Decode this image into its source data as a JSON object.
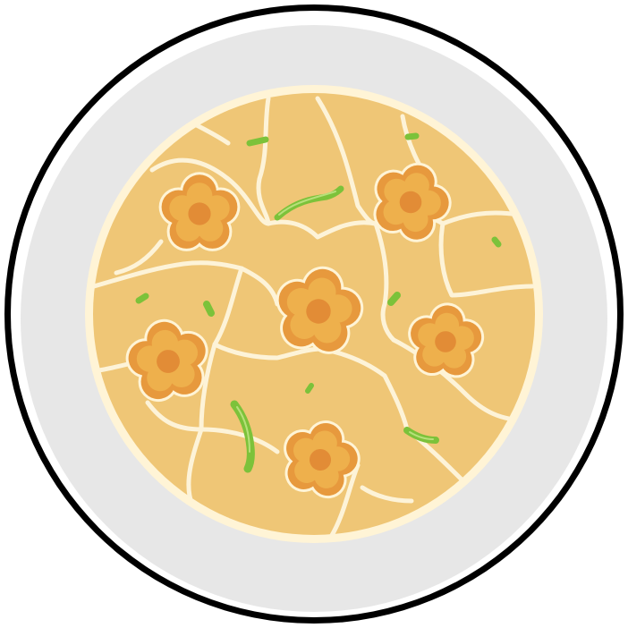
{
  "colors": {
    "background": "#ffffff",
    "plate_outline": "#000000",
    "plate_rim": "#ffffff",
    "plate_face": "#e7e7e7",
    "dish_edge": "#fff4d6",
    "dish_base": "#efc676",
    "crack_lines": "#fdf3d8",
    "flower_outer": "#e7993d",
    "flower_inner": "#eeb04c",
    "flower_center": "#e28c36",
    "herb_green": "#7cc23a",
    "herb_highlight": "#b6e07a"
  },
  "icons": {
    "plate": "plate-icon",
    "dish": "dish-icon",
    "flower": "flower-garnish-icon",
    "herb": "herb-sprinkle-icon"
  }
}
